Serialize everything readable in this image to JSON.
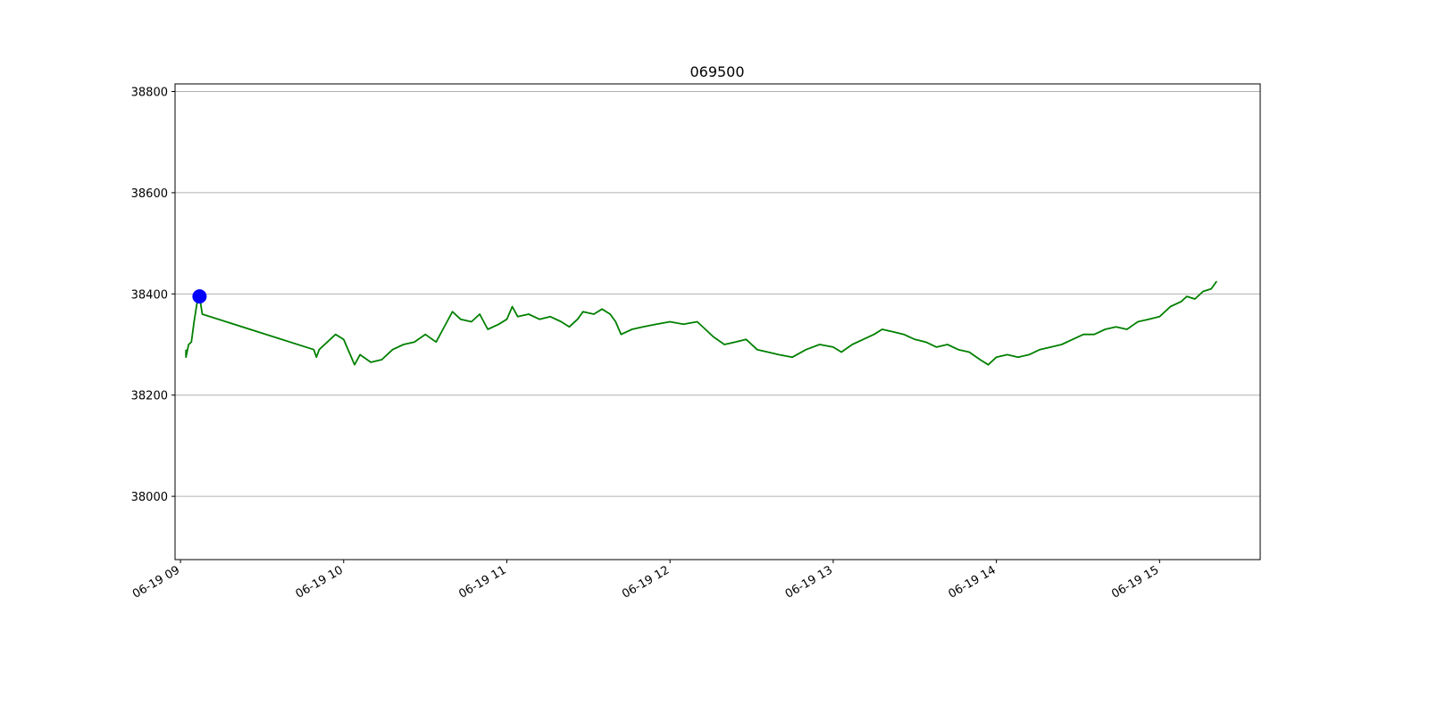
{
  "chart_data": {
    "type": "line",
    "title": "069500",
    "xlabel": "",
    "ylabel": "",
    "x_domain": [
      "06-19 08:58",
      "06-19 15:37"
    ],
    "ylim": [
      37875,
      38815
    ],
    "grid": {
      "y": true,
      "x": false
    },
    "y_ticks": [
      38000,
      38200,
      38400,
      38600,
      38800
    ],
    "x_ticks": [
      {
        "t": "06-19 09:00",
        "label": "06-19 09"
      },
      {
        "t": "06-19 10:00",
        "label": "06-19 10"
      },
      {
        "t": "06-19 11:00",
        "label": "06-19 11"
      },
      {
        "t": "06-19 12:00",
        "label": "06-19 12"
      },
      {
        "t": "06-19 13:00",
        "label": "06-19 13"
      },
      {
        "t": "06-19 14:00",
        "label": "06-19 14"
      },
      {
        "t": "06-19 15:00",
        "label": "06-19 15"
      }
    ],
    "series": [
      {
        "color": "#008000",
        "points": [
          [
            "06-19 09:02",
            38290
          ],
          [
            "06-19 09:02",
            38275
          ],
          [
            "06-19 09:03",
            38300
          ],
          [
            "06-19 09:04",
            38305
          ],
          [
            "06-19 09:05",
            38345
          ],
          [
            "06-19 09:06",
            38380
          ],
          [
            "06-19 09:07",
            38395
          ],
          [
            "06-19 09:08",
            38360
          ],
          [
            "06-19 09:49",
            38290
          ],
          [
            "06-19 09:50",
            38275
          ],
          [
            "06-19 09:51",
            38290
          ],
          [
            "06-19 09:54",
            38305
          ],
          [
            "06-19 09:57",
            38320
          ],
          [
            "06-19 10:00",
            38310
          ],
          [
            "06-19 10:02",
            38285
          ],
          [
            "06-19 10:04",
            38260
          ],
          [
            "06-19 10:06",
            38280
          ],
          [
            "06-19 10:10",
            38265
          ],
          [
            "06-19 10:14",
            38270
          ],
          [
            "06-19 10:18",
            38290
          ],
          [
            "06-19 10:22",
            38300
          ],
          [
            "06-19 10:26",
            38305
          ],
          [
            "06-19 10:30",
            38320
          ],
          [
            "06-19 10:34",
            38305
          ],
          [
            "06-19 10:38",
            38345
          ],
          [
            "06-19 10:40",
            38365
          ],
          [
            "06-19 10:43",
            38350
          ],
          [
            "06-19 10:47",
            38345
          ],
          [
            "06-19 10:50",
            38360
          ],
          [
            "06-19 10:53",
            38330
          ],
          [
            "06-19 10:57",
            38340
          ],
          [
            "06-19 11:00",
            38350
          ],
          [
            "06-19 11:02",
            38375
          ],
          [
            "06-19 11:04",
            38355
          ],
          [
            "06-19 11:08",
            38360
          ],
          [
            "06-19 11:12",
            38350
          ],
          [
            "06-19 11:16",
            38355
          ],
          [
            "06-19 11:20",
            38345
          ],
          [
            "06-19 11:23",
            38335
          ],
          [
            "06-19 11:26",
            38350
          ],
          [
            "06-19 11:28",
            38365
          ],
          [
            "06-19 11:32",
            38360
          ],
          [
            "06-19 11:35",
            38370
          ],
          [
            "06-19 11:38",
            38360
          ],
          [
            "06-19 11:40",
            38345
          ],
          [
            "06-19 11:42",
            38320
          ],
          [
            "06-19 11:46",
            38330
          ],
          [
            "06-19 11:50",
            38335
          ],
          [
            "06-19 11:55",
            38340
          ],
          [
            "06-19 12:00",
            38345
          ],
          [
            "06-19 12:05",
            38340
          ],
          [
            "06-19 12:10",
            38345
          ],
          [
            "06-19 12:13",
            38330
          ],
          [
            "06-19 12:16",
            38315
          ],
          [
            "06-19 12:20",
            38300
          ],
          [
            "06-19 12:24",
            38305
          ],
          [
            "06-19 12:28",
            38310
          ],
          [
            "06-19 12:32",
            38290
          ],
          [
            "06-19 12:36",
            38285
          ],
          [
            "06-19 12:40",
            38280
          ],
          [
            "06-19 12:45",
            38275
          ],
          [
            "06-19 12:50",
            38290
          ],
          [
            "06-19 12:55",
            38300
          ],
          [
            "06-19 13:00",
            38295
          ],
          [
            "06-19 13:03",
            38285
          ],
          [
            "06-19 13:07",
            38300
          ],
          [
            "06-19 13:11",
            38310
          ],
          [
            "06-19 13:15",
            38320
          ],
          [
            "06-19 13:18",
            38330
          ],
          [
            "06-19 13:22",
            38325
          ],
          [
            "06-19 13:26",
            38320
          ],
          [
            "06-19 13:30",
            38310
          ],
          [
            "06-19 13:34",
            38305
          ],
          [
            "06-19 13:38",
            38295
          ],
          [
            "06-19 13:42",
            38300
          ],
          [
            "06-19 13:46",
            38290
          ],
          [
            "06-19 13:50",
            38285
          ],
          [
            "06-19 13:54",
            38270
          ],
          [
            "06-19 13:57",
            38260
          ],
          [
            "06-19 14:00",
            38275
          ],
          [
            "06-19 14:04",
            38280
          ],
          [
            "06-19 14:08",
            38275
          ],
          [
            "06-19 14:12",
            38280
          ],
          [
            "06-19 14:16",
            38290
          ],
          [
            "06-19 14:20",
            38295
          ],
          [
            "06-19 14:24",
            38300
          ],
          [
            "06-19 14:28",
            38310
          ],
          [
            "06-19 14:32",
            38320
          ],
          [
            "06-19 14:36",
            38320
          ],
          [
            "06-19 14:40",
            38330
          ],
          [
            "06-19 14:44",
            38335
          ],
          [
            "06-19 14:48",
            38330
          ],
          [
            "06-19 14:52",
            38345
          ],
          [
            "06-19 14:56",
            38350
          ],
          [
            "06-19 15:00",
            38355
          ],
          [
            "06-19 15:04",
            38375
          ],
          [
            "06-19 15:08",
            38385
          ],
          [
            "06-19 15:10",
            38395
          ],
          [
            "06-19 15:13",
            38390
          ],
          [
            "06-19 15:16",
            38405
          ],
          [
            "06-19 15:19",
            38410
          ],
          [
            "06-19 15:21",
            38425
          ]
        ]
      }
    ],
    "markers": [
      {
        "t": "06-19 09:07",
        "y": 38395,
        "color": "#0000ff"
      }
    ]
  }
}
